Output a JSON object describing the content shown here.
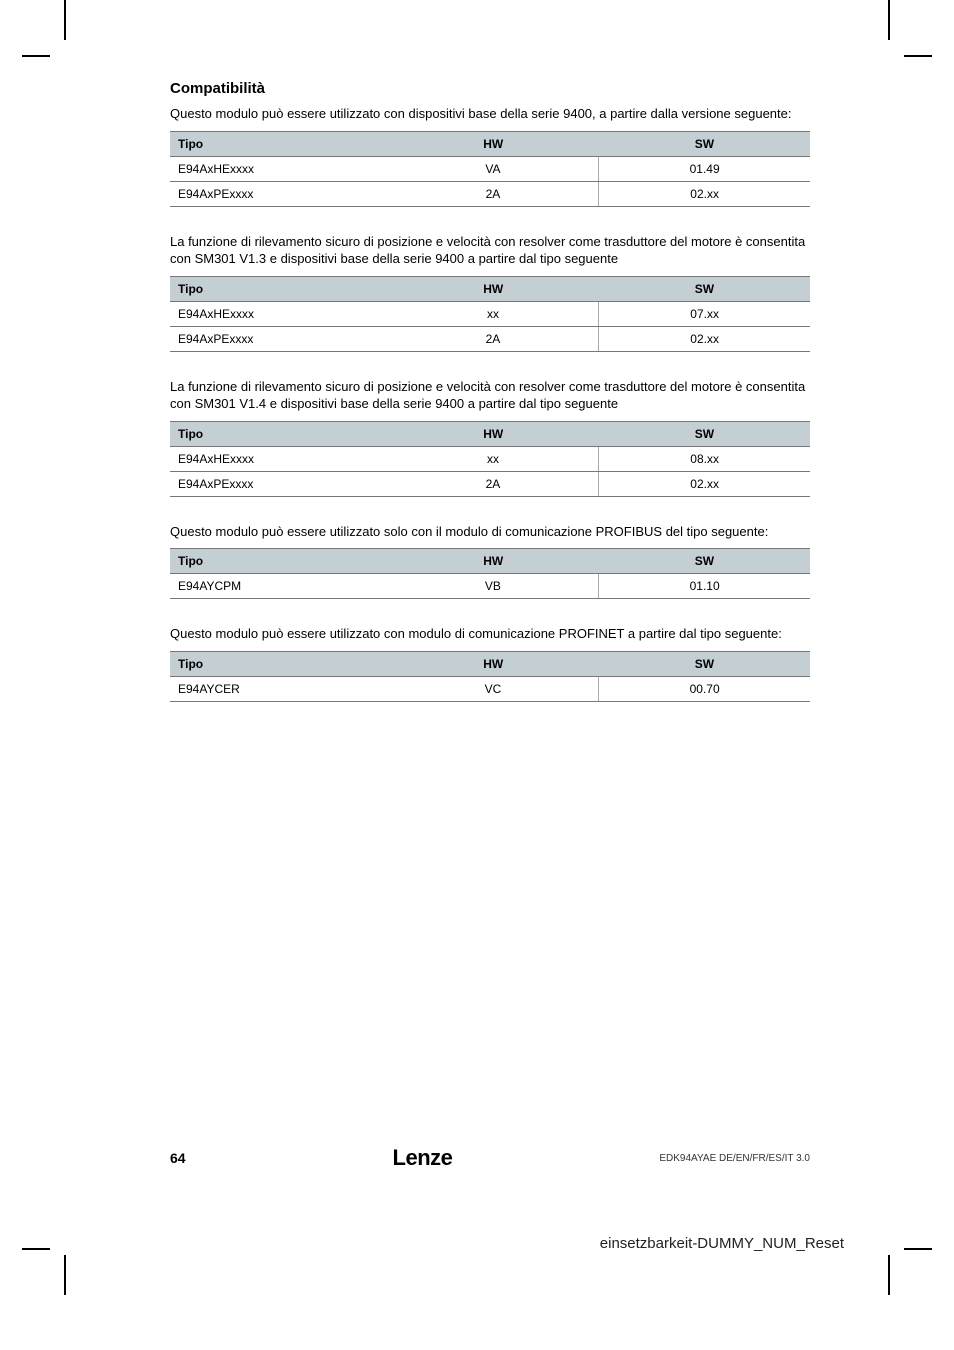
{
  "heading": "Compatibilità",
  "sections": [
    {
      "para": "Questo modulo può essere utilizzato con dispositivi base della serie 9400, a partire dalla versione seguente:",
      "table": {
        "columns": [
          "Tipo",
          "HW",
          "SW"
        ],
        "header_bg": "#c4cfd4",
        "rows": [
          [
            "E94AxHExxxx",
            "VA",
            "01.49"
          ],
          [
            "E94AxPExxxx",
            "2A",
            "02.xx"
          ]
        ]
      }
    },
    {
      "para": "La funzione di rilevamento sicuro di posizione e velocità con resolver come trasduttore del motore è consentita con SM301 V1.3 e dispositivi base della serie 9400 a partire dal tipo seguente",
      "table": {
        "columns": [
          "Tipo",
          "HW",
          "SW"
        ],
        "header_bg": "#c4cfd4",
        "rows": [
          [
            "E94AxHExxxx",
            "xx",
            "07.xx"
          ],
          [
            "E94AxPExxxx",
            "2A",
            "02.xx"
          ]
        ]
      }
    },
    {
      "para": "La funzione di rilevamento sicuro di posizione e velocità con resolver come trasduttore del motore è consentita con SM301 V1.4 e dispositivi base della serie 9400 a partire dal tipo seguente",
      "table": {
        "columns": [
          "Tipo",
          "HW",
          "SW"
        ],
        "header_bg": "#c4cfd4",
        "rows": [
          [
            "E94AxHExxxx",
            "xx",
            "08.xx"
          ],
          [
            "E94AxPExxxx",
            "2A",
            "02.xx"
          ]
        ]
      }
    },
    {
      "para": "Questo modulo può essere utilizzato solo con il modulo di comunicazione PROFIBUS del tipo seguente:",
      "table": {
        "columns": [
          "Tipo",
          "HW",
          "SW"
        ],
        "header_bg": "#c4cfd4",
        "rows": [
          [
            "E94AYCPM",
            "VB",
            "01.10"
          ]
        ]
      }
    },
    {
      "para": "Questo modulo può essere utilizzato con modulo di comunicazione PROFINET a partire dal tipo seguente:",
      "table": {
        "columns": [
          "Tipo",
          "HW",
          "SW"
        ],
        "header_bg": "#c4cfd4",
        "rows": [
          [
            "E94AYCER",
            "VC",
            "00.70"
          ]
        ]
      }
    }
  ],
  "footer": {
    "page_number": "64",
    "brand": "Lenze",
    "doc_id": "EDK94AYAE  DE/EN/FR/ES/IT  3.0"
  },
  "bottom_text": "einsetzbarkeit-DUMMY_NUM_Reset",
  "col_widths": [
    "34%",
    "33%",
    "33%"
  ]
}
